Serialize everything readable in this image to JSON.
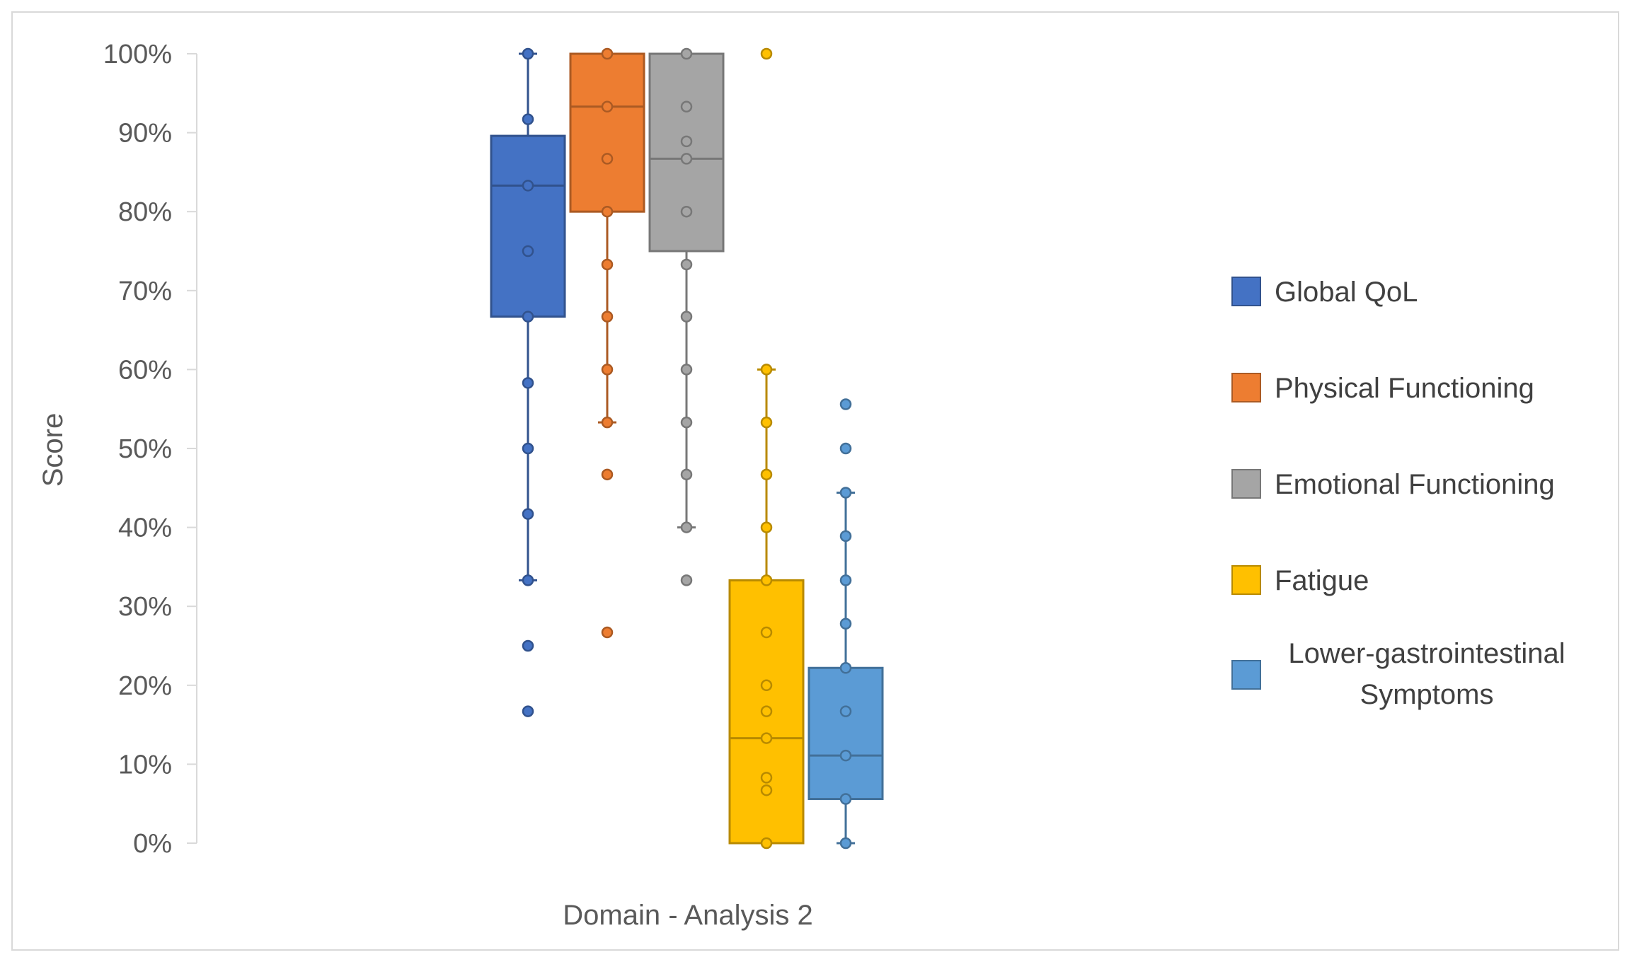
{
  "chart_data": {
    "type": "box",
    "title": "",
    "xlabel": "Domain - Analysis 2",
    "ylabel": "Score",
    "ylim": [
      0,
      100
    ],
    "yticks": [
      "0%",
      "10%",
      "20%",
      "30%",
      "40%",
      "50%",
      "60%",
      "70%",
      "80%",
      "90%",
      "100%"
    ],
    "legend_position": "right",
    "series": [
      {
        "name": "Global QoL",
        "color": "#4472C4",
        "q1": 66.7,
        "median": 83.3,
        "q3": 89.6,
        "whisker_low": 33.3,
        "whisker_high": 100,
        "points": [
          100,
          91.7,
          83.3,
          75,
          66.7,
          58.3,
          50,
          41.7,
          33.3,
          25,
          16.7
        ]
      },
      {
        "name": "Physical Functioning",
        "color": "#ED7D31",
        "q1": 80,
        "median": 93.3,
        "q3": 100,
        "whisker_low": 53.3,
        "whisker_high": 100,
        "points": [
          100,
          93.3,
          86.7,
          80,
          73.3,
          66.7,
          60,
          53.3,
          46.7,
          26.7
        ]
      },
      {
        "name": "Emotional Functioning",
        "color": "#A5A5A5",
        "q1": 75,
        "median": 86.7,
        "q3": 100,
        "whisker_low": 40,
        "whisker_high": 100,
        "points": [
          100,
          93.3,
          88.9,
          86.7,
          80,
          73.3,
          66.7,
          60,
          53.3,
          46.7,
          40,
          33.3
        ]
      },
      {
        "name": "Fatigue",
        "color": "#FFC000",
        "q1": 0,
        "median": 13.3,
        "q3": 33.3,
        "whisker_low": 0,
        "whisker_high": 60,
        "points": [
          100,
          60,
          53.3,
          46.7,
          40,
          33.3,
          26.7,
          20,
          16.7,
          13.3,
          8.3,
          6.7,
          0
        ]
      },
      {
        "name": "Lower-gastrointestinal Symptoms",
        "color": "#5B9BD5",
        "q1": 5.6,
        "median": 11.1,
        "q3": 22.2,
        "whisker_low": 0,
        "whisker_high": 44.4,
        "points": [
          55.6,
          50,
          44.4,
          38.9,
          33.3,
          27.8,
          22.2,
          16.7,
          11.1,
          5.6,
          0
        ]
      }
    ]
  }
}
